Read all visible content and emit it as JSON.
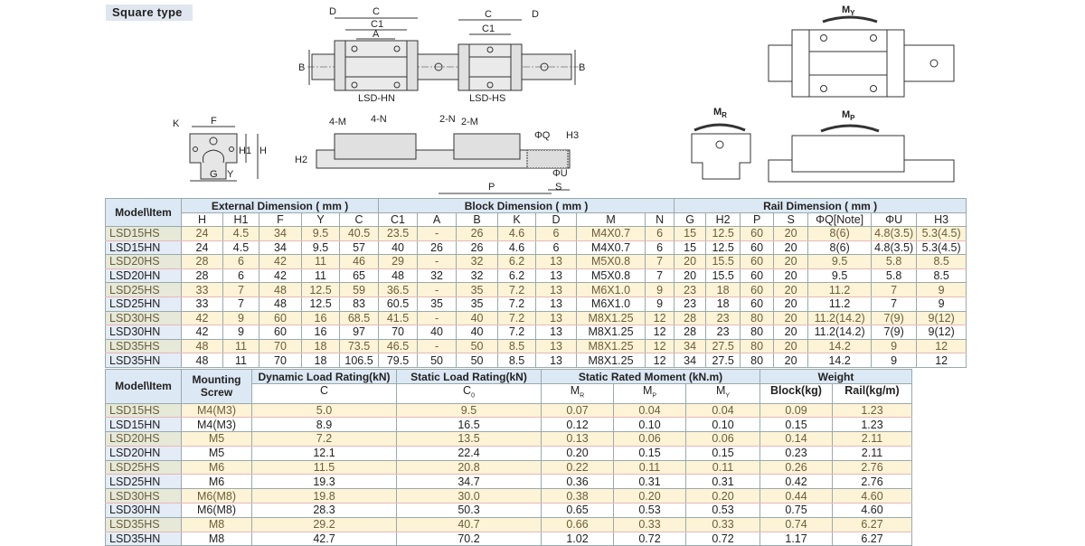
{
  "section_title": "Square type",
  "drawings": {
    "top_view": {
      "D": "D",
      "C": "C",
      "C1": "C1",
      "A": "A",
      "B": "B",
      "hn_label": "LSD-HN",
      "hs_label": "LSD-HS"
    },
    "end_view": {
      "K": "K",
      "F": "F",
      "H1": "H1",
      "H": "H",
      "G": "G",
      "Y": "Y"
    },
    "side_view": {
      "m4": "4-M",
      "n4": "4-N",
      "n2": "2-N",
      "m2": "2-M",
      "Q": "ΦQ",
      "H3": "H3",
      "H2": "H2",
      "U": "ΦU",
      "P": "P",
      "S": "S"
    },
    "moments": {
      "MY": "M",
      "MY_sub": "Y",
      "MR": "M",
      "MR_sub": "R",
      "MP": "M",
      "MP_sub": "P"
    }
  },
  "dimension_table": {
    "model_header": "Model\\Item",
    "groups": [
      "External Dimension ( mm )",
      "Block Dimension ( mm )",
      "Rail Dimension ( mm )"
    ],
    "columns": [
      "H",
      "H1",
      "F",
      "Y",
      "C",
      "C1",
      "A",
      "B",
      "K",
      "D",
      "M",
      "N",
      "G",
      "H2",
      "P",
      "S",
      "ΦQ[Note]",
      "ΦU",
      "H3"
    ],
    "rows": [
      [
        "LSD15HS",
        "24",
        "4.5",
        "34",
        "9.5",
        "40.5",
        "23.5",
        "-",
        "26",
        "4.6",
        "6",
        "M4X0.7",
        "6",
        "15",
        "12.5",
        "60",
        "20",
        "8(6)",
        "4.8(3.5)",
        "5.3(4.5)"
      ],
      [
        "LSD15HN",
        "24",
        "4.5",
        "34",
        "9.5",
        "57",
        "40",
        "26",
        "26",
        "4.6",
        "6",
        "M4X0.7",
        "6",
        "15",
        "12.5",
        "60",
        "20",
        "8(6)",
        "4.8(3.5)",
        "5.3(4.5)"
      ],
      [
        "LSD20HS",
        "28",
        "6",
        "42",
        "11",
        "46",
        "29",
        "-",
        "32",
        "6.2",
        "13",
        "M5X0.8",
        "7",
        "20",
        "15.5",
        "60",
        "20",
        "9.5",
        "5.8",
        "8.5"
      ],
      [
        "LSD20HN",
        "28",
        "6",
        "42",
        "11",
        "65",
        "48",
        "32",
        "32",
        "6.2",
        "13",
        "M5X0.8",
        "7",
        "20",
        "15.5",
        "60",
        "20",
        "9.5",
        "5.8",
        "8.5"
      ],
      [
        "LSD25HS",
        "33",
        "7",
        "48",
        "12.5",
        "59",
        "36.5",
        "-",
        "35",
        "7.2",
        "13",
        "M6X1.0",
        "9",
        "23",
        "18",
        "60",
        "20",
        "11.2",
        "7",
        "9"
      ],
      [
        "LSD25HN",
        "33",
        "7",
        "48",
        "12.5",
        "83",
        "60.5",
        "35",
        "35",
        "7.2",
        "13",
        "M6X1.0",
        "9",
        "23",
        "18",
        "60",
        "20",
        "11.2",
        "7",
        "9"
      ],
      [
        "LSD30HS",
        "42",
        "9",
        "60",
        "16",
        "68.5",
        "41.5",
        "-",
        "40",
        "7.2",
        "13",
        "M8X1.25",
        "12",
        "28",
        "23",
        "80",
        "20",
        "11.2(14.2)",
        "7(9)",
        "9(12)"
      ],
      [
        "LSD30HN",
        "42",
        "9",
        "60",
        "16",
        "97",
        "70",
        "40",
        "40",
        "7.2",
        "13",
        "M8X1.25",
        "12",
        "28",
        "23",
        "80",
        "20",
        "11.2(14.2)",
        "7(9)",
        "9(12)"
      ],
      [
        "LSD35HS",
        "48",
        "11",
        "70",
        "18",
        "73.5",
        "46.5",
        "-",
        "50",
        "8.5",
        "13",
        "M8X1.25",
        "12",
        "34",
        "27.5",
        "80",
        "20",
        "14.2",
        "9",
        "12"
      ],
      [
        "LSD35HN",
        "48",
        "11",
        "70",
        "18",
        "106.5",
        "79.5",
        "50",
        "50",
        "8.5",
        "13",
        "M8X1.25",
        "12",
        "34",
        "27.5",
        "80",
        "20",
        "14.2",
        "9",
        "12"
      ]
    ]
  },
  "load_table": {
    "model_header": "Model\\Item",
    "mounting_header": "Mounting Screw",
    "groups": [
      "Dynamic Load Rating(kN)",
      "Static Load Rating(kN)",
      "Static Rated Moment (kN.m)",
      "Weight"
    ],
    "columns": [
      {
        "t": "C",
        "s": ""
      },
      {
        "t": "C",
        "s": "0"
      },
      {
        "t": "M",
        "s": "R"
      },
      {
        "t": "M",
        "s": "P"
      },
      {
        "t": "M",
        "s": "Y"
      },
      {
        "t": "Block(kg)",
        "s": ""
      },
      {
        "t": "Rail(kg/m)",
        "s": ""
      }
    ],
    "rows": [
      [
        "LSD15HS",
        "M4(M3)",
        "5.0",
        "9.5",
        "0.07",
        "0.04",
        "0.04",
        "0.09",
        "1.23"
      ],
      [
        "LSD15HN",
        "M4(M3)",
        "8.9",
        "16.5",
        "0.12",
        "0.10",
        "0.10",
        "0.15",
        "1.23"
      ],
      [
        "LSD20HS",
        "M5",
        "7.2",
        "13.5",
        "0.13",
        "0.06",
        "0.06",
        "0.14",
        "2.11"
      ],
      [
        "LSD20HN",
        "M5",
        "12.1",
        "22.4",
        "0.20",
        "0.15",
        "0.15",
        "0.23",
        "2.11"
      ],
      [
        "LSD25HS",
        "M6",
        "11.5",
        "20.8",
        "0.22",
        "0.11",
        "0.11",
        "0.26",
        "2.76"
      ],
      [
        "LSD25HN",
        "M6",
        "19.3",
        "34.7",
        "0.36",
        "0.31",
        "0.31",
        "0.42",
        "2.76"
      ],
      [
        "LSD30HS",
        "M6(M8)",
        "19.8",
        "30.0",
        "0.38",
        "0.20",
        "0.20",
        "0.44",
        "4.60"
      ],
      [
        "LSD30HN",
        "M6(M8)",
        "28.3",
        "50.3",
        "0.65",
        "0.53",
        "0.53",
        "0.75",
        "4.60"
      ],
      [
        "LSD35HS",
        "M8",
        "29.2",
        "40.7",
        "0.66",
        "0.33",
        "0.33",
        "0.74",
        "6.27"
      ],
      [
        "LSD35HN",
        "M8",
        "42.7",
        "70.2",
        "1.02",
        "0.72",
        "0.72",
        "1.17",
        "6.27"
      ]
    ]
  }
}
